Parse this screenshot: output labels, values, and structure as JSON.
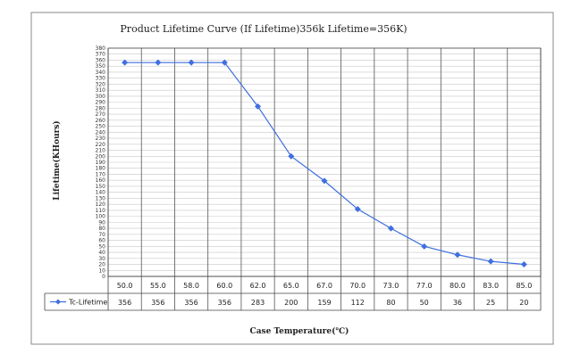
{
  "chart_data": {
    "type": "line",
    "title": "Product Lifetime Curve (If Lifetime)356k Lifetime=356K)",
    "xlabel": "Case Temperature(℃)",
    "ylabel": "Lifetime(KHours)",
    "ylim": [
      0,
      380
    ],
    "ytick_step": 10,
    "grid": true,
    "legend": "data-table-left",
    "categories": [
      "50.0",
      "55.0",
      "58.0",
      "60.0",
      "62.0",
      "65.0",
      "67.0",
      "70.0",
      "73.0",
      "77.0",
      "80.0",
      "83.0",
      "85.0"
    ],
    "series": [
      {
        "name": "Tc-Lifetime",
        "color": "#3f6fe0",
        "marker": "diamond",
        "values": [
          356,
          356,
          356,
          356,
          283,
          200,
          159,
          112,
          80,
          50,
          36,
          25,
          20
        ]
      }
    ]
  }
}
